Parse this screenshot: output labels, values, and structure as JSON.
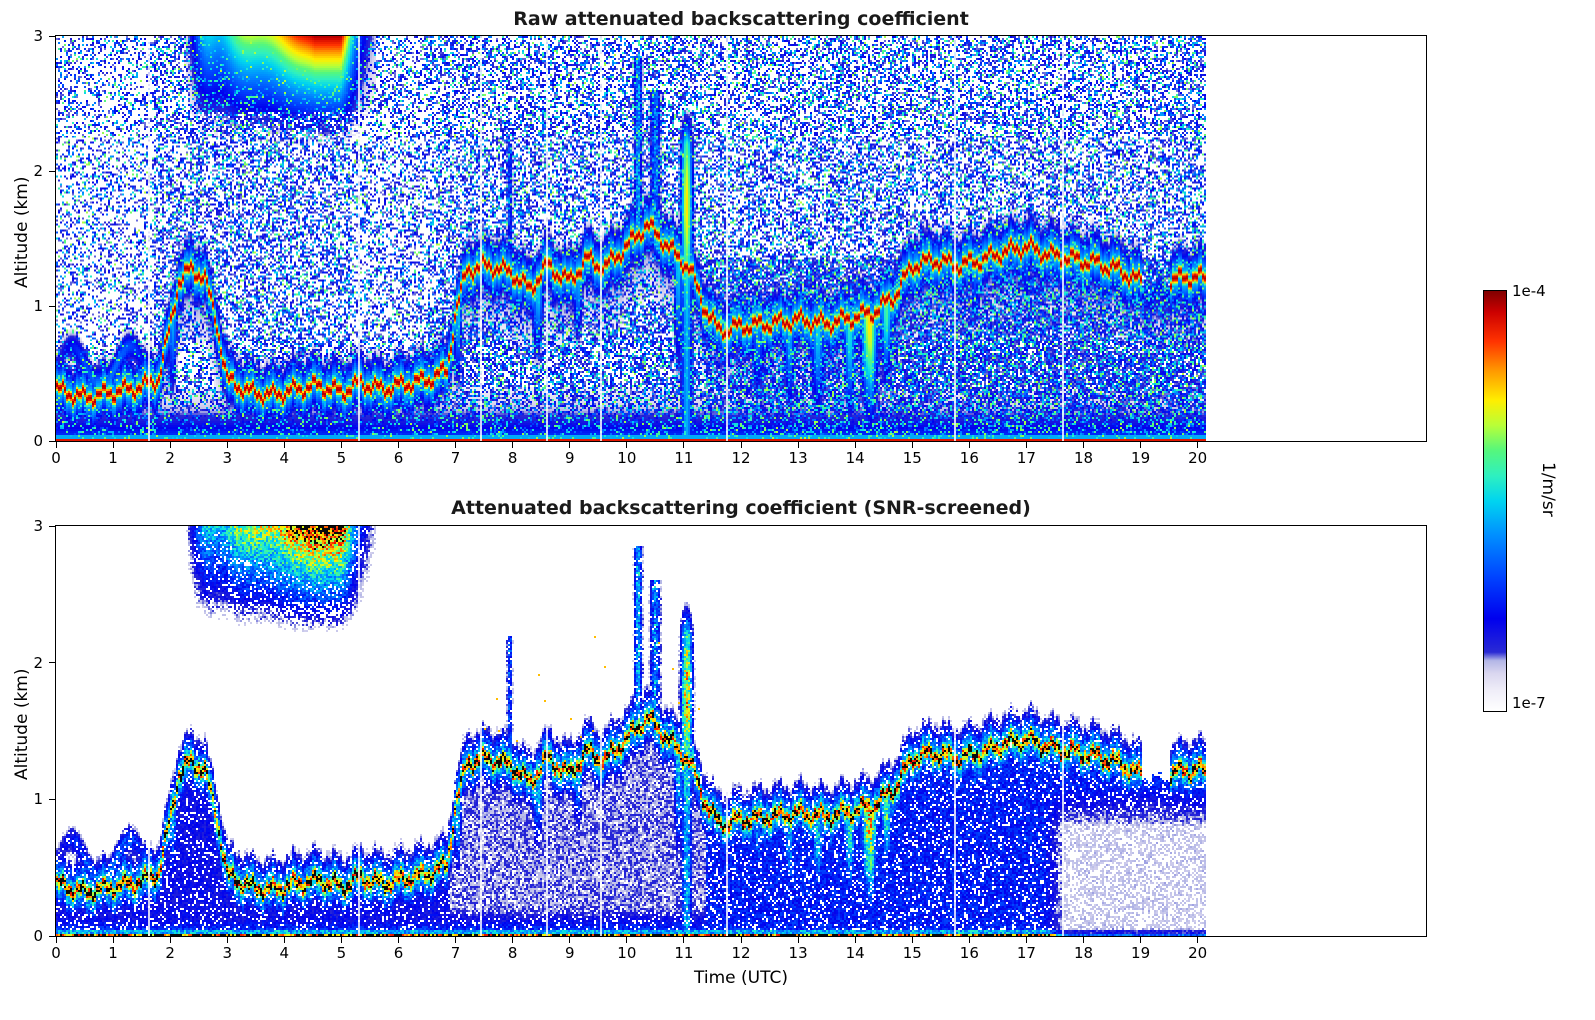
{
  "panels": [
    {
      "title": "Raw attenuated backscattering coefficient"
    },
    {
      "title": "Attenuated backscattering coefficient (SNR-screened)"
    }
  ],
  "axes": {
    "xlabel": "Time (UTC)",
    "ylabel": "Altitude (km)",
    "xticks": [
      "0",
      "1",
      "2",
      "3",
      "4",
      "5",
      "6",
      "7",
      "8",
      "9",
      "10",
      "11",
      "12",
      "13",
      "14",
      "15",
      "16",
      "17",
      "18",
      "19",
      "20"
    ],
    "yticks": [
      "0",
      "1",
      "2",
      "3"
    ]
  },
  "colorbar": {
    "max_label": "1e-4",
    "min_label": "1e-7",
    "units_label": "1/m/sr",
    "stops": [
      {
        "p": 0.0,
        "c": "#ffffff"
      },
      {
        "p": 0.05,
        "c": "#efedf8"
      },
      {
        "p": 0.09,
        "c": "#d9d6ef"
      },
      {
        "p": 0.12,
        "c": "#b3b6e6"
      },
      {
        "p": 0.14,
        "c": "#2a2ad4"
      },
      {
        "p": 0.22,
        "c": "#0000ee"
      },
      {
        "p": 0.32,
        "c": "#0044ff"
      },
      {
        "p": 0.42,
        "c": "#0090ff"
      },
      {
        "p": 0.5,
        "c": "#00d4f0"
      },
      {
        "p": 0.56,
        "c": "#2ef0c0"
      },
      {
        "p": 0.62,
        "c": "#55f77d"
      },
      {
        "p": 0.68,
        "c": "#b8ff38"
      },
      {
        "p": 0.74,
        "c": "#ffee00"
      },
      {
        "p": 0.81,
        "c": "#ff9900"
      },
      {
        "p": 0.88,
        "c": "#ff3300"
      },
      {
        "p": 0.95,
        "c": "#cc0000"
      },
      {
        "p": 1.0,
        "c": "#800000"
      }
    ]
  },
  "chart_data": {
    "type": "heatmap",
    "panels": [
      {
        "title": "Raw attenuated backscattering coefficient",
        "snr_screened": false
      },
      {
        "title": "Attenuated backscattering coefficient (SNR-screened)",
        "snr_screened": true
      }
    ],
    "x": {
      "label": "Time (UTC)",
      "range": [
        0,
        20.15
      ],
      "axis_max": 24
    },
    "y": {
      "label": "Altitude (km)",
      "range": [
        0,
        3
      ]
    },
    "value": {
      "units": "1/m/sr",
      "min": 1e-07,
      "max": 0.0001,
      "scale": "log"
    },
    "features": {
      "aerosol_layer": {
        "t": [
          0,
          0.5,
          1.0,
          1.5,
          1.8,
          2.0,
          2.15,
          2.35,
          2.6,
          2.8,
          3.0,
          3.4,
          3.8,
          4.2,
          4.6,
          5.0,
          5.35,
          5.7,
          6.1,
          6.5,
          6.85,
          7.0,
          7.2,
          7.6,
          8.0,
          8.3,
          8.6,
          9.0,
          9.3,
          9.6,
          10.0,
          10.35,
          10.6,
          10.85,
          11.1,
          11.35,
          11.6,
          12.0,
          12.5,
          13.0,
          13.5,
          14.0,
          14.35,
          14.7,
          15.0,
          15.4,
          15.8,
          16.2,
          16.6,
          17.0,
          17.4,
          17.8,
          18.2,
          18.6,
          19.0,
          19.3,
          19.6,
          20.0,
          20.15
        ],
        "h": [
          0.38,
          0.32,
          0.36,
          0.4,
          0.46,
          0.85,
          1.18,
          1.27,
          1.22,
          0.9,
          0.45,
          0.36,
          0.34,
          0.38,
          0.41,
          0.36,
          0.43,
          0.38,
          0.42,
          0.45,
          0.52,
          0.95,
          1.27,
          1.3,
          1.24,
          1.12,
          1.3,
          1.18,
          1.35,
          1.28,
          1.44,
          1.6,
          1.5,
          1.38,
          1.28,
          1.0,
          0.82,
          0.85,
          0.87,
          0.9,
          0.87,
          0.92,
          0.96,
          1.08,
          1.3,
          1.34,
          1.3,
          1.34,
          1.4,
          1.44,
          1.38,
          1.35,
          1.32,
          1.27,
          1.18,
          1.15,
          1.2,
          1.22,
          1.2
        ]
      },
      "layer_gaps_t": [
        [
          19.03,
          19.5
        ]
      ],
      "curtains": [
        {
          "t": 2.05,
          "w": 0.08,
          "s": 0.45,
          "depth": 0.5
        },
        {
          "t": 7.05,
          "w": 0.07,
          "s": 0.5,
          "depth": 0.5
        },
        {
          "t": 8.45,
          "w": 0.1,
          "s": 0.5,
          "depth": 0.45
        },
        {
          "t": 9.15,
          "w": 0.08,
          "s": 0.45,
          "depth": 0.4
        },
        {
          "t": 10.9,
          "w": 0.08,
          "s": 0.5,
          "depth": 0.7
        },
        {
          "t": 12.3,
          "w": 0.12,
          "s": 0.4,
          "depth": 0.5
        },
        {
          "t": 12.85,
          "w": 0.1,
          "s": 0.45,
          "depth": 0.55
        },
        {
          "t": 13.35,
          "w": 0.12,
          "s": 0.5,
          "depth": 0.6
        },
        {
          "t": 13.9,
          "w": 0.1,
          "s": 0.55,
          "depth": 0.6
        },
        {
          "t": 14.25,
          "w": 0.14,
          "s": 0.75,
          "depth": 0.65
        },
        {
          "t": 14.55,
          "w": 0.1,
          "s": 0.6,
          "depth": 0.5
        },
        {
          "t": 16.1,
          "w": 0.08,
          "s": 0.35,
          "depth": 0.4
        },
        {
          "t": 17.0,
          "w": 0.08,
          "s": 0.35,
          "depth": 0.4
        }
      ],
      "wisps": [
        {
          "t": 10.2,
          "w": 0.07,
          "amp": 0.55,
          "ztop": 2.85
        },
        {
          "t": 10.5,
          "w": 0.09,
          "amp": 0.5,
          "ztop": 2.6
        },
        {
          "t": 7.95,
          "w": 0.05,
          "amp": 0.4,
          "ztop": 2.2
        }
      ],
      "plume": {
        "t": [
          2.2,
          5.6
        ],
        "z": [
          2.1,
          3.0
        ],
        "bumps": [
          {
            "t": 4.35,
            "w": 0.85,
            "a": 0.9
          },
          {
            "t": 3.2,
            "w": 0.5,
            "a": 0.5
          },
          {
            "t": 2.6,
            "w": 0.25,
            "a": 0.35
          },
          {
            "t": 4.9,
            "w": 0.3,
            "a": 0.5
          }
        ]
      },
      "precip_streak": {
        "t": 11.05,
        "w": 0.1
      },
      "boundary_lines_t": [
        1.62,
        5.28,
        7.43,
        8.58,
        9.53,
        11.72,
        15.72,
        17.62
      ]
    }
  }
}
